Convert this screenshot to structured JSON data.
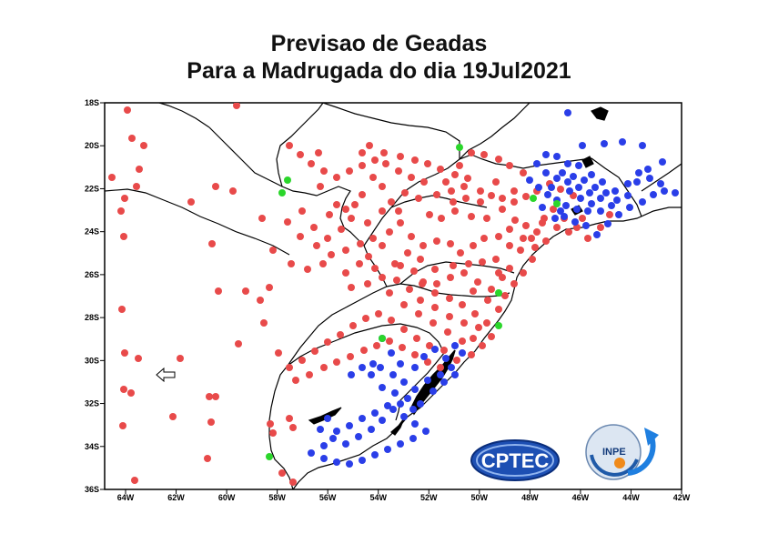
{
  "title": {
    "line1": "Previsao  de  Geadas",
    "line2": "Para a Madrugada do dia 19Jul2021"
  },
  "map": {
    "lon_range": [
      -65,
      -42
    ],
    "lat_range": [
      -36,
      -18
    ],
    "x_ticks": [
      "64W",
      "62W",
      "60W",
      "58W",
      "56W",
      "54W",
      "52W",
      "50W",
      "48W",
      "46W",
      "44W",
      "42W"
    ],
    "y_ticks": [
      "18S",
      "20S",
      "22S",
      "24S",
      "26S",
      "28S",
      "30S",
      "32S",
      "34S",
      "36S"
    ],
    "colors": {
      "frost": "#e84a4a",
      "strong_frost": "#2a3ee8",
      "green": "#2bd62b"
    }
  },
  "logos": {
    "cptec": "CPTEC",
    "inpe": "INPE"
  }
}
